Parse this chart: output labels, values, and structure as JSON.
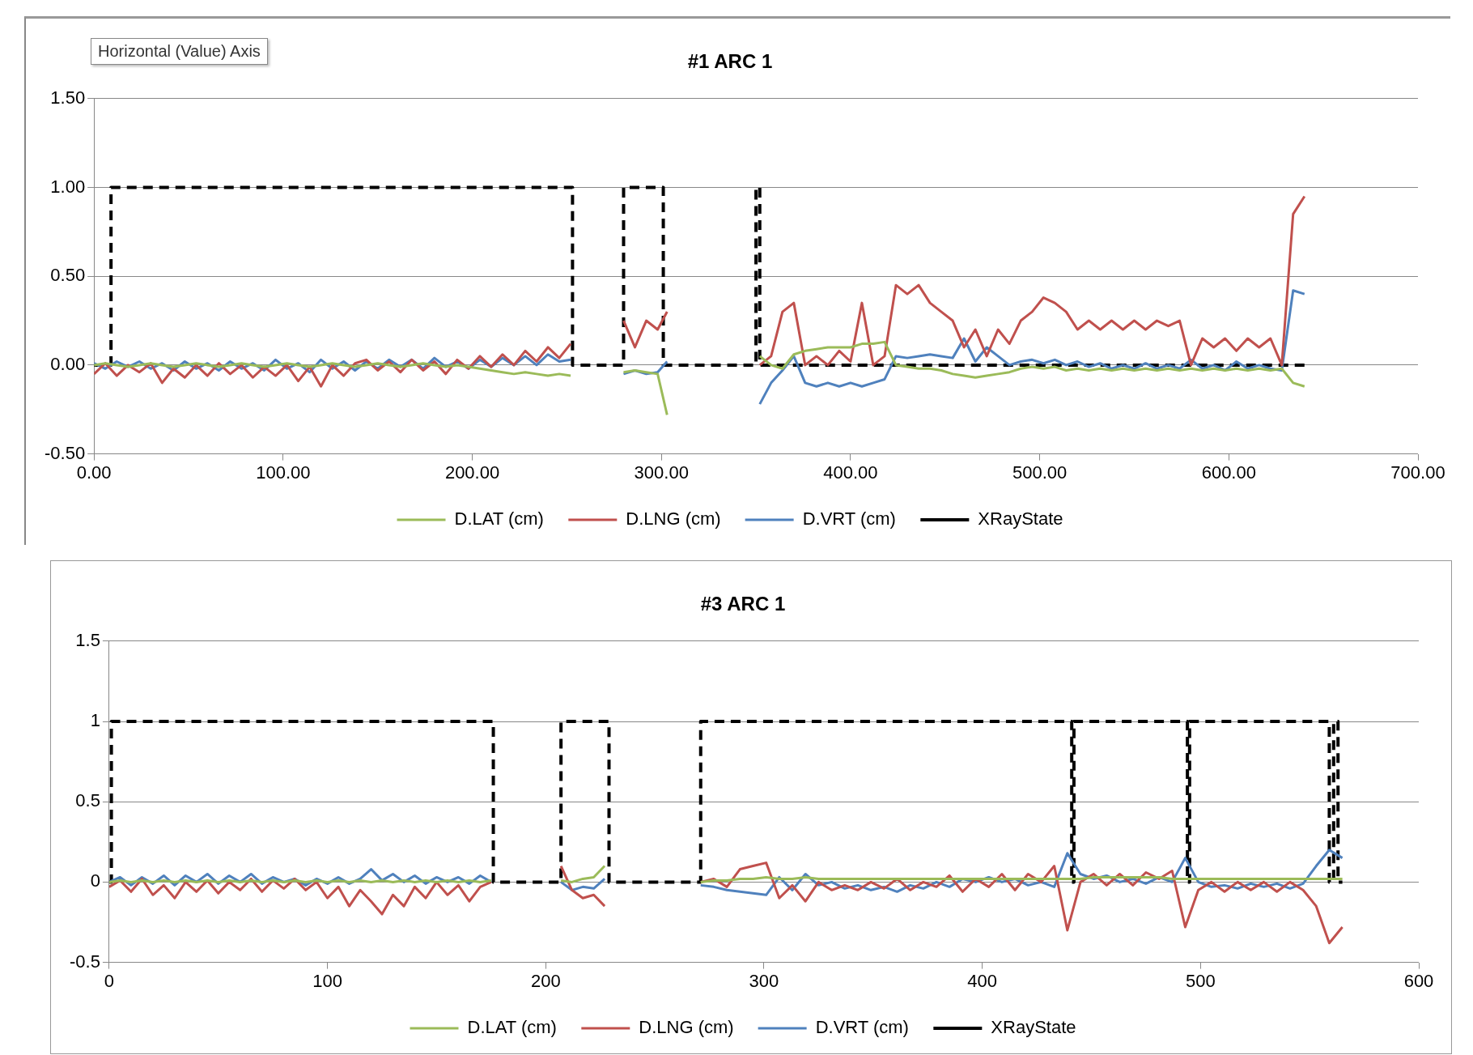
{
  "chart_data": [
    {
      "type": "line",
      "title": "#1 ARC 1",
      "annotations": [
        "Horizontal (Value) Axis"
      ],
      "legend": "bottom",
      "grid": "y",
      "marker": "none",
      "xlim": [
        0,
        700
      ],
      "xticks": [
        {
          "value": 0,
          "label": "0.00"
        },
        {
          "value": 100,
          "label": "100.00"
        },
        {
          "value": 200,
          "label": "200.00"
        },
        {
          "value": 300,
          "label": "300.00"
        },
        {
          "value": 400,
          "label": "400.00"
        },
        {
          "value": 500,
          "label": "500.00"
        },
        {
          "value": 600,
          "label": "600.00"
        },
        {
          "value": 700,
          "label": "700.00"
        }
      ],
      "ylim": [
        -0.5,
        1.5
      ],
      "yticks": [
        {
          "value": -0.5,
          "label": "-0.50"
        },
        {
          "value": 0,
          "label": "0.00"
        },
        {
          "value": 0.5,
          "label": "0.50"
        },
        {
          "value": 1,
          "label": "1.00"
        },
        {
          "value": 1.5,
          "label": "1.50"
        }
      ],
      "x": [
        0,
        6,
        12,
        18,
        24,
        30,
        36,
        42,
        48,
        54,
        60,
        66,
        72,
        78,
        84,
        90,
        96,
        102,
        108,
        114,
        120,
        126,
        132,
        138,
        144,
        150,
        156,
        162,
        168,
        174,
        180,
        186,
        192,
        198,
        204,
        210,
        216,
        222,
        228,
        234,
        240,
        246,
        252,
        264,
        280,
        286,
        292,
        298,
        303,
        326,
        352,
        358,
        364,
        370,
        376,
        382,
        388,
        394,
        400,
        406,
        412,
        418,
        424,
        430,
        436,
        442,
        448,
        454,
        460,
        466,
        472,
        478,
        484,
        490,
        496,
        502,
        508,
        514,
        520,
        526,
        532,
        538,
        544,
        550,
        556,
        562,
        568,
        574,
        580,
        586,
        592,
        598,
        604,
        610,
        616,
        622,
        628,
        634,
        640
      ],
      "series": [
        {
          "name": "D.LAT (cm)",
          "color": "#9bbb59",
          "line_style": "solid",
          "values": [
            0,
            0.01,
            0,
            -0.01,
            0,
            0.01,
            0,
            -0.01,
            0,
            0.01,
            0,
            -0.01,
            0,
            0.01,
            0,
            -0.01,
            0,
            0.01,
            0,
            -0.01,
            0,
            0.01,
            0,
            -0.01,
            0,
            0.01,
            0,
            -0.01,
            0,
            0.01,
            0,
            -0.01,
            0,
            -0.01,
            -0.02,
            -0.03,
            -0.04,
            -0.05,
            -0.04,
            -0.05,
            -0.06,
            -0.05,
            -0.06,
            null,
            -0.04,
            -0.03,
            -0.04,
            -0.05,
            -0.28,
            null,
            0.05,
            0,
            -0.02,
            0.06,
            0.08,
            0.09,
            0.1,
            0.1,
            0.1,
            0.12,
            0.12,
            0.13,
            0,
            -0.01,
            -0.02,
            -0.02,
            -0.03,
            -0.05,
            -0.06,
            -0.07,
            -0.06,
            -0.05,
            -0.04,
            -0.02,
            -0.01,
            -0.02,
            -0.01,
            -0.03,
            -0.02,
            -0.03,
            -0.02,
            -0.03,
            -0.02,
            -0.03,
            -0.02,
            -0.03,
            -0.02,
            -0.03,
            -0.02,
            -0.03,
            -0.02,
            -0.03,
            -0.02,
            -0.03,
            -0.02,
            -0.03,
            -0.02,
            -0.1,
            -0.12
          ]
        },
        {
          "name": "D.LNG (cm)",
          "color": "#c0504d",
          "line_style": "solid",
          "values": [
            -0.05,
            0.01,
            -0.06,
            0,
            -0.04,
            0.01,
            -0.1,
            -0.02,
            -0.07,
            0,
            -0.06,
            0.01,
            -0.05,
            0,
            -0.07,
            -0.01,
            -0.06,
            0,
            -0.09,
            -0.01,
            -0.12,
            0,
            -0.06,
            0.01,
            0.03,
            -0.03,
            0.02,
            -0.04,
            0.03,
            -0.03,
            0.02,
            -0.05,
            0.03,
            -0.02,
            0.05,
            -0.01,
            0.06,
            0,
            0.08,
            0.02,
            0.1,
            0.04,
            0.12,
            null,
            0.25,
            0.1,
            0.25,
            0.2,
            0.3,
            null,
            0,
            0.05,
            0.3,
            0.35,
            0,
            0.05,
            0,
            0.08,
            0.02,
            0.35,
            0,
            0.05,
            0.45,
            0.4,
            0.45,
            0.35,
            0.3,
            0.25,
            0.1,
            0.2,
            0.05,
            0.2,
            0.12,
            0.25,
            0.3,
            0.38,
            0.35,
            0.3,
            0.2,
            0.25,
            0.2,
            0.25,
            0.2,
            0.25,
            0.2,
            0.25,
            0.22,
            0.25,
            0,
            0.15,
            0.1,
            0.15,
            0.08,
            0.15,
            0.1,
            0.15,
            0,
            0.85,
            0.95
          ]
        },
        {
          "name": "D.VRT (cm)",
          "color": "#4f81bd",
          "line_style": "solid",
          "values": [
            0.01,
            -0.02,
            0.02,
            -0.01,
            0.02,
            -0.02,
            0.01,
            -0.03,
            0.02,
            -0.02,
            0.01,
            -0.03,
            0.02,
            -0.02,
            0.01,
            -0.03,
            0.03,
            -0.02,
            0.01,
            -0.04,
            0.03,
            -0.02,
            0.02,
            -0.03,
            0.02,
            -0.02,
            0.03,
            -0.01,
            0.03,
            -0.02,
            0.04,
            -0.01,
            0.02,
            -0.02,
            0.03,
            -0.01,
            0.04,
            0,
            0.05,
            0,
            0.06,
            0.02,
            0.03,
            null,
            -0.05,
            -0.03,
            -0.05,
            -0.04,
            0.02,
            null,
            -0.22,
            -0.1,
            -0.03,
            0.05,
            -0.1,
            -0.12,
            -0.1,
            -0.12,
            -0.1,
            -0.12,
            -0.1,
            -0.08,
            0.05,
            0.04,
            0.05,
            0.06,
            0.05,
            0.04,
            0.15,
            0.02,
            0.1,
            0.05,
            0,
            0.02,
            0.03,
            0.01,
            0.03,
            0,
            0.02,
            -0.01,
            0.01,
            -0.02,
            0,
            -0.02,
            0.01,
            -0.02,
            0,
            -0.02,
            0.03,
            -0.02,
            0,
            -0.03,
            0.02,
            -0.02,
            0,
            -0.02,
            -0.03,
            0.42,
            0.4
          ]
        },
        {
          "name": "XRayState",
          "color": "#000000",
          "line_style": "dashed",
          "x": [
            0,
            9,
            9,
            253,
            253,
            280,
            280,
            301,
            301,
            350,
            350,
            352,
            352,
            640
          ],
          "values": [
            0,
            0,
            1,
            1,
            0,
            0,
            1,
            1,
            0,
            0,
            1,
            1,
            0,
            0
          ]
        }
      ]
    },
    {
      "type": "line",
      "title": "#3 ARC 1",
      "legend": "bottom",
      "grid": "y",
      "marker": "none",
      "xlim": [
        0,
        600
      ],
      "xticks": [
        0,
        100,
        200,
        300,
        400,
        500,
        600
      ],
      "ylim": [
        -0.5,
        1.5
      ],
      "yticks": [
        -0.5,
        0,
        0.5,
        1,
        1.5
      ],
      "x": [
        0,
        5,
        10,
        15,
        20,
        25,
        30,
        35,
        40,
        45,
        50,
        55,
        60,
        65,
        70,
        75,
        80,
        85,
        90,
        95,
        100,
        105,
        110,
        115,
        120,
        125,
        130,
        135,
        140,
        145,
        150,
        155,
        160,
        165,
        170,
        175,
        190,
        207,
        212,
        217,
        222,
        227,
        250,
        271,
        277,
        283,
        289,
        295,
        301,
        307,
        313,
        319,
        325,
        331,
        337,
        343,
        349,
        355,
        361,
        367,
        373,
        379,
        385,
        391,
        397,
        403,
        409,
        415,
        421,
        427,
        433,
        439,
        445,
        451,
        457,
        463,
        469,
        475,
        481,
        487,
        493,
        499,
        505,
        511,
        517,
        523,
        529,
        535,
        541,
        547,
        553,
        559,
        565
      ],
      "series": [
        {
          "name": "D.LAT (cm)",
          "color": "#9bbb59",
          "line_style": "solid",
          "values": [
            0,
            0.01,
            0,
            0.01,
            0,
            0.01,
            0,
            0.01,
            0,
            0.01,
            0,
            0.01,
            0,
            0.01,
            0,
            0.01,
            0,
            0.01,
            0,
            0.01,
            0,
            0.01,
            0,
            0.01,
            0,
            0.01,
            0,
            0.01,
            0,
            0.01,
            0,
            0.01,
            0,
            0.01,
            0,
            0.01,
            null,
            0.01,
            0,
            0.02,
            0.03,
            0.1,
            null,
            0,
            0.01,
            0.01,
            0.02,
            0.02,
            0.03,
            0.02,
            0.02,
            0.03,
            0.02,
            0.02,
            0.02,
            0.02,
            0.02,
            0.02,
            0.02,
            0.02,
            0.02,
            0.02,
            0.02,
            0.02,
            0.02,
            0.02,
            0.02,
            0.02,
            0.02,
            0.02,
            0.02,
            0.02,
            0.02,
            0.03,
            0.03,
            0.03,
            0.03,
            0.03,
            0.03,
            0.02,
            0.02,
            0.02,
            0.02,
            0.02,
            0.02,
            0.02,
            0.02,
            0.02,
            0.02,
            0.02,
            0.02,
            0.02,
            0.02
          ]
        },
        {
          "name": "D.LNG (cm)",
          "color": "#c0504d",
          "line_style": "solid",
          "values": [
            -0.03,
            0.01,
            -0.06,
            0.02,
            -0.08,
            -0.02,
            -0.1,
            0,
            -0.06,
            0.01,
            -0.07,
            0,
            -0.05,
            0.02,
            -0.06,
            0.01,
            -0.04,
            0.02,
            -0.05,
            0,
            -0.1,
            -0.03,
            -0.15,
            -0.05,
            -0.12,
            -0.2,
            -0.08,
            -0.15,
            -0.03,
            -0.1,
            0,
            -0.08,
            -0.02,
            -0.12,
            -0.03,
            0,
            null,
            0.1,
            -0.05,
            -0.1,
            -0.08,
            -0.15,
            null,
            0,
            0.02,
            -0.03,
            0.08,
            0.1,
            0.12,
            -0.1,
            -0.02,
            -0.12,
            0,
            -0.05,
            -0.02,
            -0.05,
            0,
            -0.04,
            0.02,
            -0.05,
            0,
            -0.03,
            0.04,
            -0.06,
            0.02,
            -0.03,
            0.05,
            -0.05,
            0.05,
            0,
            0.1,
            -0.3,
            0,
            0.05,
            -0.02,
            0.05,
            -0.02,
            0.06,
            0.02,
            0.07,
            -0.28,
            -0.05,
            0,
            -0.06,
            0,
            -0.05,
            0,
            -0.06,
            0,
            -0.05,
            -0.15,
            -0.38,
            -0.28
          ]
        },
        {
          "name": "D.VRT (cm)",
          "color": "#4f81bd",
          "line_style": "solid",
          "values": [
            0,
            0.03,
            -0.02,
            0.03,
            -0.01,
            0.04,
            -0.02,
            0.04,
            0,
            0.05,
            -0.01,
            0.04,
            0,
            0.05,
            -0.01,
            0.03,
            0,
            0.02,
            -0.02,
            0.02,
            -0.01,
            0.03,
            -0.01,
            0.02,
            0.08,
            0.01,
            0.05,
            0,
            0.04,
            -0.01,
            0.03,
            0,
            0.03,
            -0.01,
            0.04,
            0,
            null,
            0,
            -0.05,
            -0.03,
            -0.04,
            0.02,
            null,
            -0.02,
            -0.03,
            -0.05,
            -0.06,
            -0.07,
            -0.08,
            0.03,
            -0.05,
            0.05,
            -0.02,
            0,
            -0.04,
            -0.02,
            -0.05,
            -0.03,
            -0.06,
            -0.02,
            -0.04,
            0,
            -0.03,
            0.02,
            0,
            0.03,
            0,
            0.02,
            -0.02,
            0,
            -0.03,
            0.18,
            0.05,
            0.02,
            0.04,
            0,
            0.02,
            -0.01,
            0.03,
            0,
            0.15,
            0,
            -0.03,
            -0.02,
            -0.04,
            -0.01,
            -0.03,
            -0.01,
            -0.04,
            -0.01,
            0.1,
            0.2,
            0.15
          ]
        },
        {
          "name": "XRayState",
          "color": "#000000",
          "line_style": "dashed",
          "x": [
            0,
            1,
            1,
            176,
            176,
            207,
            207,
            229,
            229,
            271,
            271,
            441,
            441,
            442,
            442,
            494,
            494,
            495,
            495,
            559,
            559,
            561,
            561,
            563,
            563,
            565
          ],
          "values": [
            0,
            0,
            1,
            1,
            0,
            0,
            1,
            1,
            0,
            0,
            1,
            1,
            0,
            0,
            1,
            1,
            0,
            0,
            1,
            1,
            0,
            0,
            1,
            1,
            0,
            0
          ]
        }
      ]
    }
  ]
}
